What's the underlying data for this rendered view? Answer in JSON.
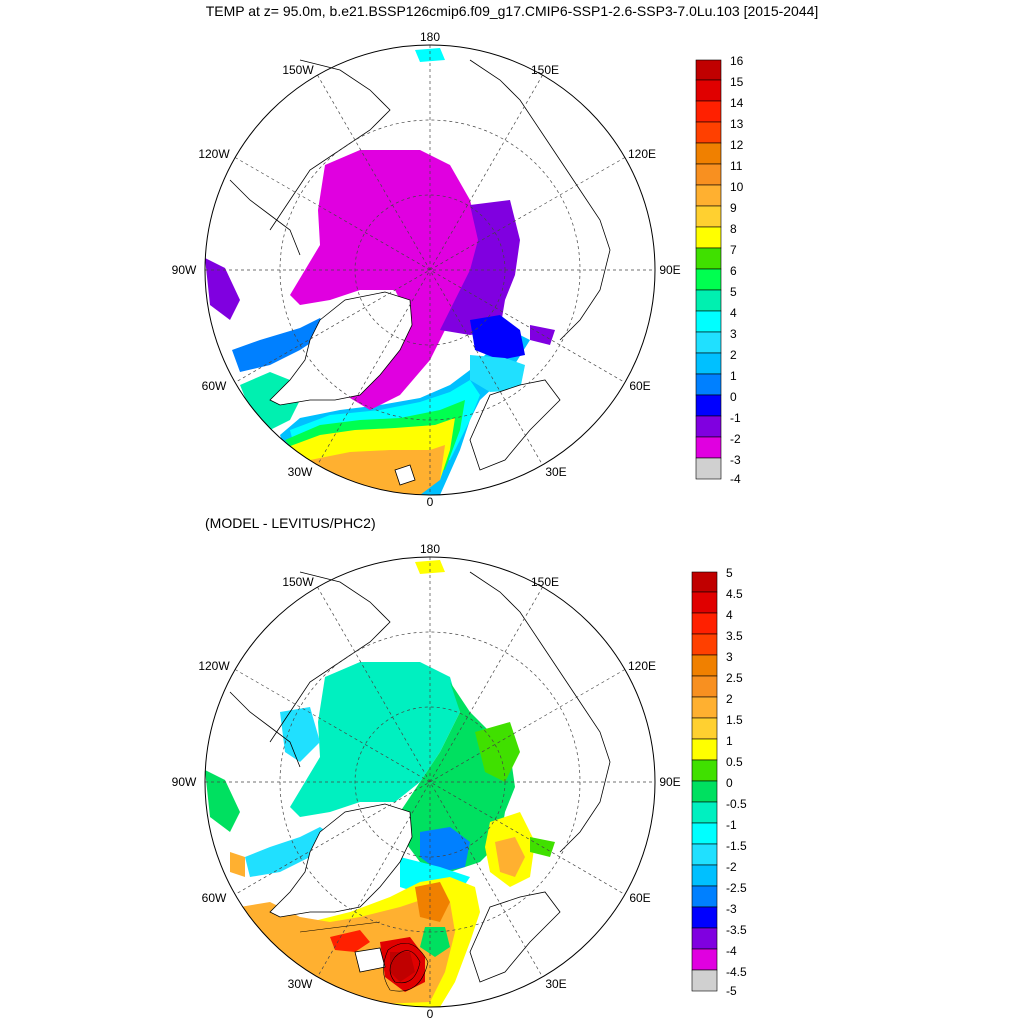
{
  "title": "TEMP at z=  95.0m, b.e21.BSSP126cmip6.f09_g17.CMIP6-SSP1-2.6-SSP3-7.0Lu.103 [2015-2044]",
  "subtitle": "(MODEL - LEVITUS/PHC2)",
  "longitude_labels": [
    "180",
    "150E",
    "120E",
    "90E",
    "60E",
    "30E",
    "0",
    "30W",
    "60W",
    "90W",
    "120W",
    "150W"
  ],
  "top_panel": {
    "colorbar_labels": [
      "16",
      "15",
      "14",
      "13",
      "12",
      "11",
      "10",
      "9",
      "8",
      "7",
      "6",
      "5",
      "4",
      "3",
      "2",
      "1",
      "0",
      "-1",
      "-2",
      "-3",
      "-4"
    ],
    "colors": [
      "#c00000",
      "#e00000",
      "#ff2000",
      "#ff4000",
      "#f08000",
      "#f89020",
      "#ffb030",
      "#ffd030",
      "#ffff00",
      "#40e000",
      "#00ff50",
      "#00f0b0",
      "#00ffff",
      "#20e0ff",
      "#00c0ff",
      "#0080ff",
      "#0000ff",
      "#8000e0",
      "#e000e0",
      "#d0d0d0",
      "#707070"
    ]
  },
  "bottom_panel": {
    "colorbar_labels": [
      "5",
      "4.5",
      "4",
      "3.5",
      "3",
      "2.5",
      "2",
      "1.5",
      "1",
      "0.5",
      "0",
      "-0.5",
      "-1",
      "-1.5",
      "-2",
      "-2.5",
      "-3",
      "-3.5",
      "-4",
      "-4.5",
      "-5"
    ],
    "colors": [
      "#c00000",
      "#e00000",
      "#ff2000",
      "#ff4000",
      "#f08000",
      "#f89020",
      "#ffb030",
      "#ffd030",
      "#ffff00",
      "#40e000",
      "#00e060",
      "#00f0c0",
      "#00ffff",
      "#20e0ff",
      "#00c0ff",
      "#0080ff",
      "#0000ff",
      "#8000e0",
      "#e000e0",
      "#d0d0d0",
      "#707070"
    ]
  }
}
